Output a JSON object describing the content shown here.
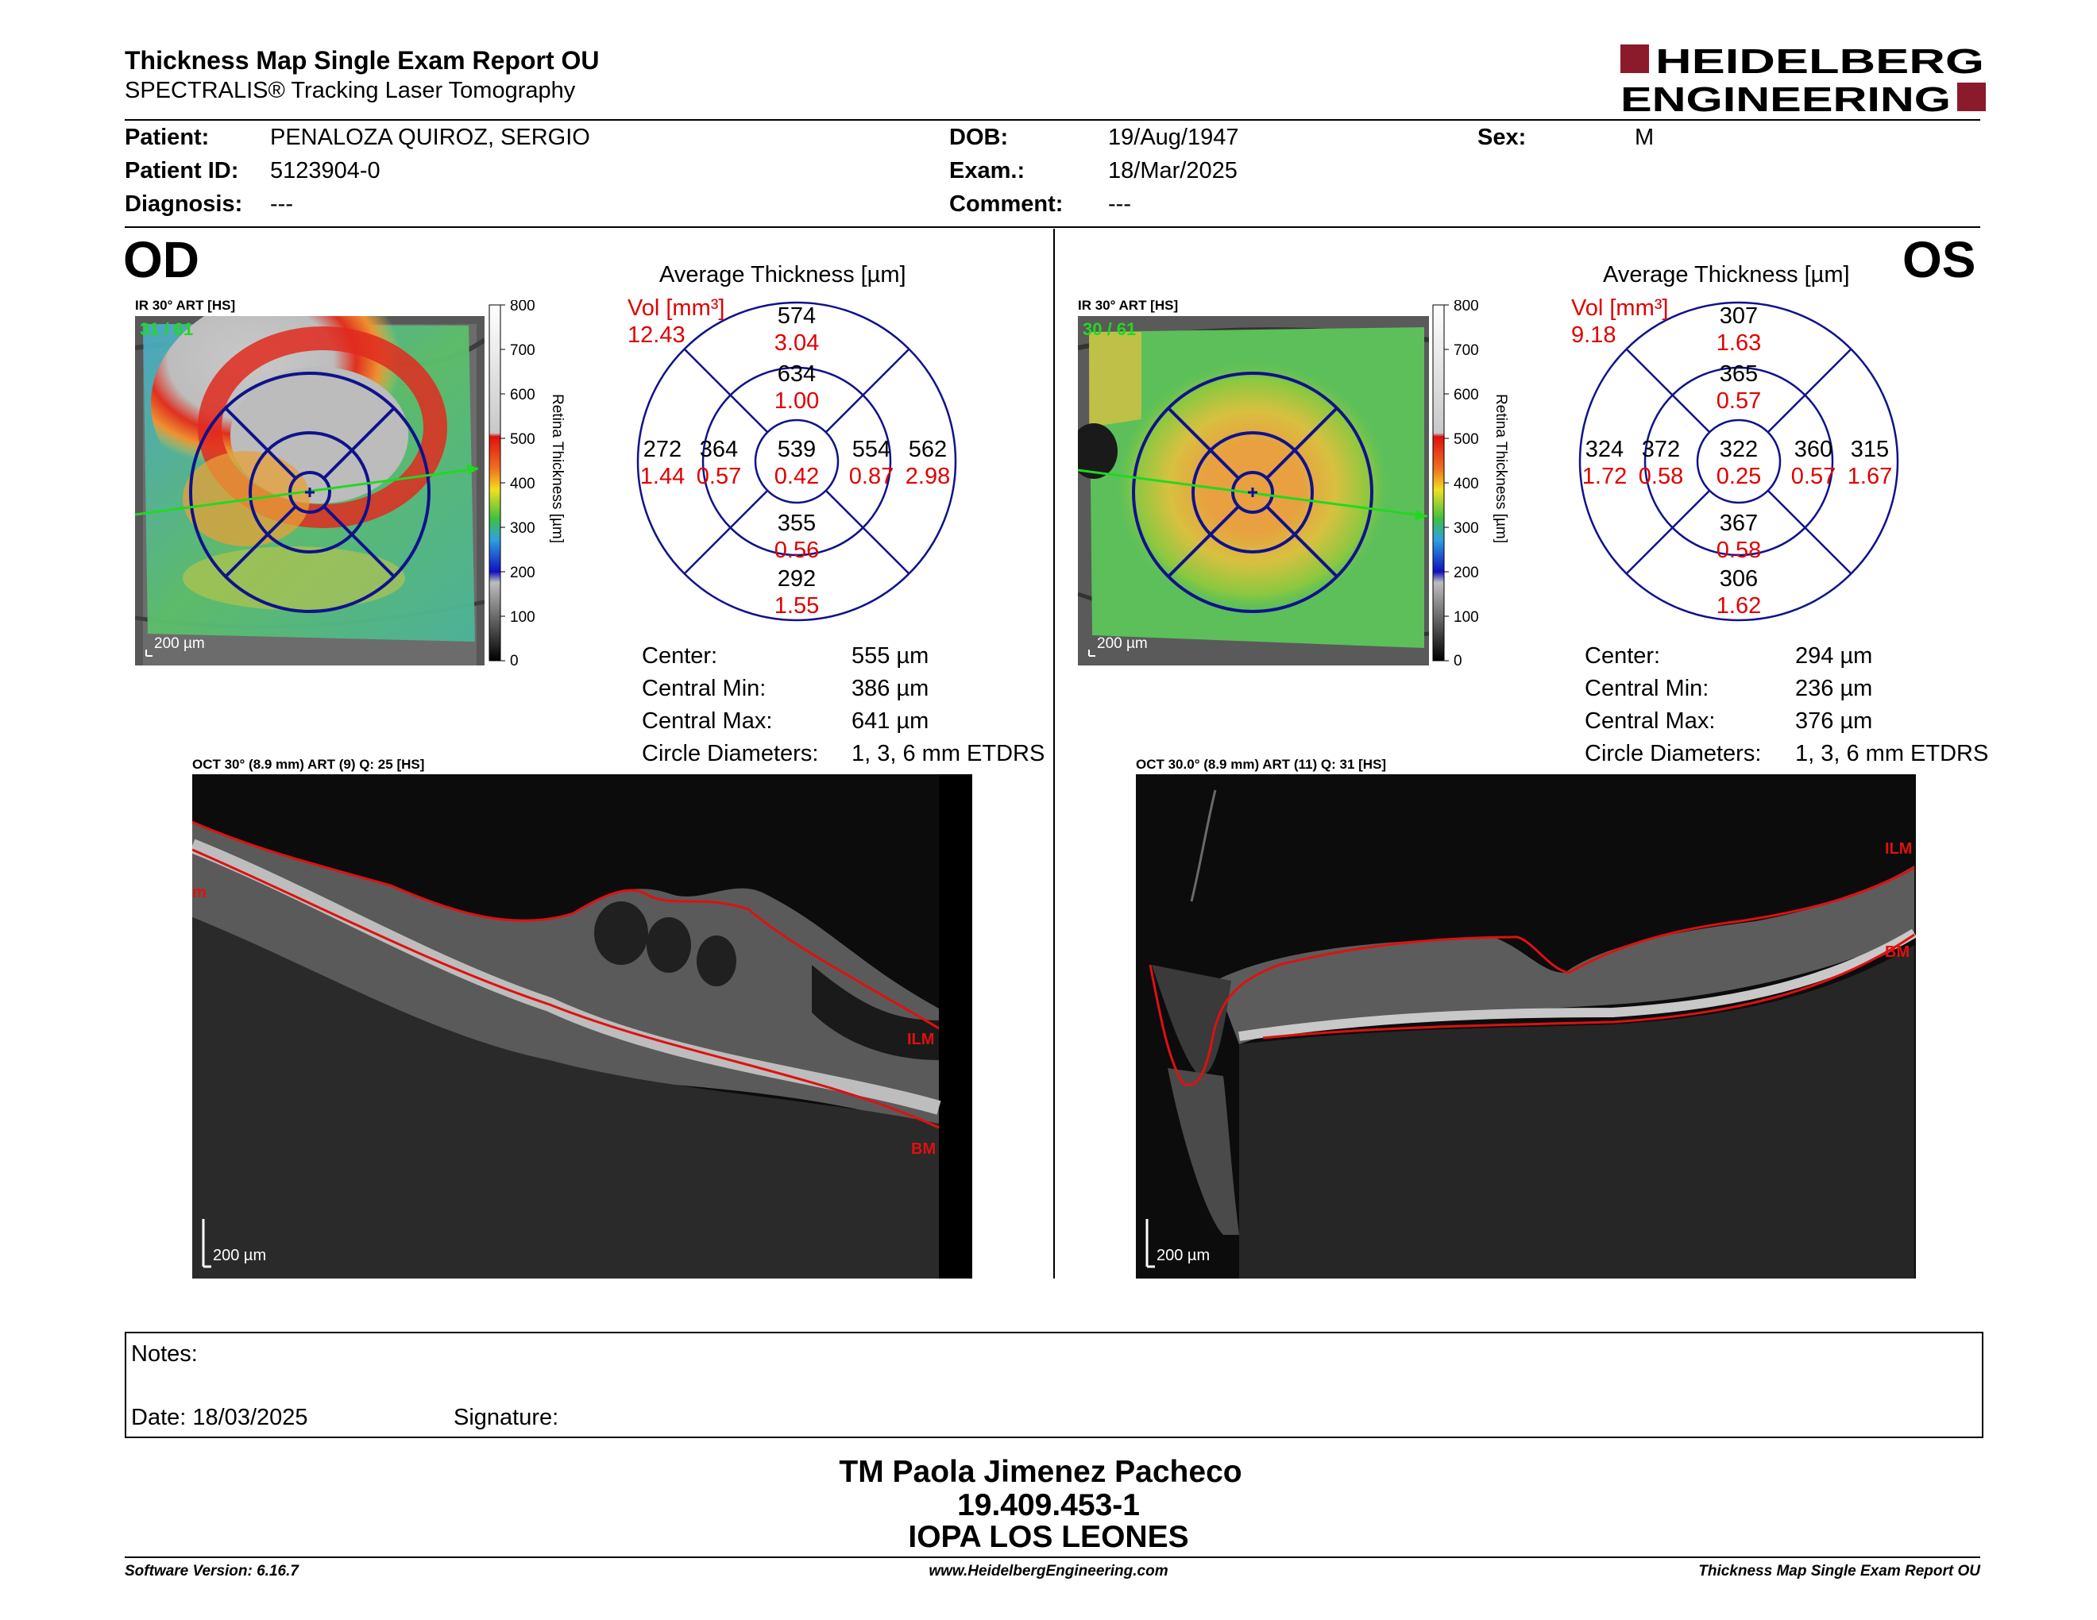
{
  "header": {
    "title": "Thickness Map Single Exam Report OU",
    "subtitle": "SPECTRALIS® Tracking Laser Tomography",
    "logo_line1": "HEIDELBERG",
    "logo_line2": "ENGINEERING",
    "brand_color": "#8b1a2b"
  },
  "patient": {
    "patient_label": "Patient:",
    "patient_value": "PENALOZA QUIROZ, SERGIO",
    "id_label": "Patient ID:",
    "id_value": "5123904-0",
    "diag_label": "Diagnosis:",
    "diag_value": "---",
    "dob_label": "DOB:",
    "dob_value": "19/Aug/1947",
    "exam_label": "Exam.:",
    "exam_value": "18/Mar/2025",
    "comment_label": "Comment:",
    "comment_value": "---",
    "sex_label": "Sex:",
    "sex_value": "M"
  },
  "od": {
    "eye": "OD",
    "ir_label": "IR 30° ART [HS]",
    "frames": "31 / 61",
    "scale_text": "200 µm",
    "avg_title": "Average Thickness [µm]",
    "vol_label": "Vol [mm³]",
    "vol_total": "12.43",
    "grid": {
      "outer_sup": "574",
      "outer_sup_vol": "3.04",
      "inner_sup": "634",
      "inner_sup_vol": "1.00",
      "outer_left": "272",
      "outer_left_vol": "1.44",
      "inner_left": "364",
      "inner_left_vol": "0.57",
      "center": "539",
      "center_vol": "0.42",
      "inner_right": "554",
      "inner_right_vol": "0.87",
      "outer_right": "562",
      "outer_right_vol": "2.98",
      "inner_inf": "355",
      "inner_inf_vol": "0.56",
      "outer_inf": "292",
      "outer_inf_vol": "1.55"
    },
    "center_label": "Center:",
    "center_value": "555 µm",
    "cmin_label": "Central Min:",
    "cmin_value": "386 µm",
    "cmax_label": "Central Max:",
    "cmax_value": "641 µm",
    "circ_label": "Circle Diameters:",
    "circ_value": "1, 3, 6 mm ETDRS",
    "oct_label": "OCT 30° (8.9 mm) ART (9) Q: 25 [HS]",
    "ilm": "ILM",
    "bm": "BM",
    "oct_scale": "200 µm"
  },
  "os": {
    "eye": "OS",
    "ir_label": "IR 30° ART [HS]",
    "frames": "30 / 61",
    "scale_text": "200 µm",
    "avg_title": "Average Thickness [µm]",
    "vol_label": "Vol [mm³]",
    "vol_total": "9.18",
    "grid": {
      "outer_sup": "307",
      "outer_sup_vol": "1.63",
      "inner_sup": "365",
      "inner_sup_vol": "0.57",
      "outer_left": "324",
      "outer_left_vol": "1.72",
      "inner_left": "372",
      "inner_left_vol": "0.58",
      "center": "322",
      "center_vol": "0.25",
      "inner_right": "360",
      "inner_right_vol": "0.57",
      "outer_right": "315",
      "outer_right_vol": "1.67",
      "inner_inf": "367",
      "inner_inf_vol": "0.58",
      "outer_inf": "306",
      "outer_inf_vol": "1.62"
    },
    "center_label": "Center:",
    "center_value": "294 µm",
    "cmin_label": "Central Min:",
    "cmin_value": "236 µm",
    "cmax_label": "Central Max:",
    "cmax_value": "376 µm",
    "circ_label": "Circle Diameters:",
    "circ_value": "1, 3, 6 mm ETDRS",
    "oct_label": "OCT 30.0° (8.9 mm) ART (11) Q: 31 [HS]",
    "ilm": "ILM",
    "bm": "BM",
    "oct_scale": "200 µm"
  },
  "colorbar": {
    "ticks": [
      "800",
      "700",
      "600",
      "500",
      "400",
      "300",
      "200",
      "100",
      "0"
    ],
    "title": "Retina Thickness [µm]"
  },
  "notes": {
    "notes_label": "Notes:",
    "date_label": "Date: 18/03/2025",
    "signature_label": "Signature:"
  },
  "signature_block": {
    "name": "TM Paola Jimenez Pacheco",
    "rut": "19.409.453-1",
    "org": "IOPA LOS LEONES"
  },
  "footer": {
    "version": "Software Version: 6.16.7",
    "url": "www.HeidelbergEngineering.com",
    "report": "Thickness Map Single Exam Report OU"
  }
}
